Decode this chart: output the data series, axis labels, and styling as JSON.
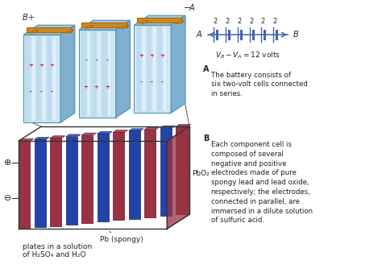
{
  "bg_color": "#ffffff",
  "cell_front_light": "#d0e8f5",
  "cell_front_mid": "#b8d8ed",
  "cell_top_color": "#a0c8e0",
  "cell_side_color": "#80b0d0",
  "cell_edge": "#5090b0",
  "orange_color": "#cc8822",
  "orange_dark": "#aa6600",
  "red_plate": "#993344",
  "red_plate_edge": "#661122",
  "blue_plate": "#2244aa",
  "blue_plate_edge": "#112266",
  "circuit_color": "#4466aa",
  "text_color": "#222222",
  "line_color": "#333333",
  "top_section_note_A": "The battery consists of\nsix two-volt cells connected\nin series.",
  "bottom_section_note_B": "Each component cell is\ncomposed of several\nnegative and positive\nelectrodes made of pure\nspongy lead and lead oxide,\nrespectively; the electrodes,\nconnected in parallel, are\nimmersed in a dilute solution\nof sulfuric acid.",
  "circuit_equation": "$V_B - V_A = 12$ volts",
  "label_A_italic": "A",
  "label_B_italic": "B",
  "plus_sign": "+",
  "minus_sign": "−",
  "cell_voltages_label": "2",
  "pbo2_label": "PbO₂",
  "pb_label": "Pb (spongy)",
  "plates_label_line1": "plates in a solution",
  "plates_label_line2": "of H₂SO₄ and H₂O"
}
